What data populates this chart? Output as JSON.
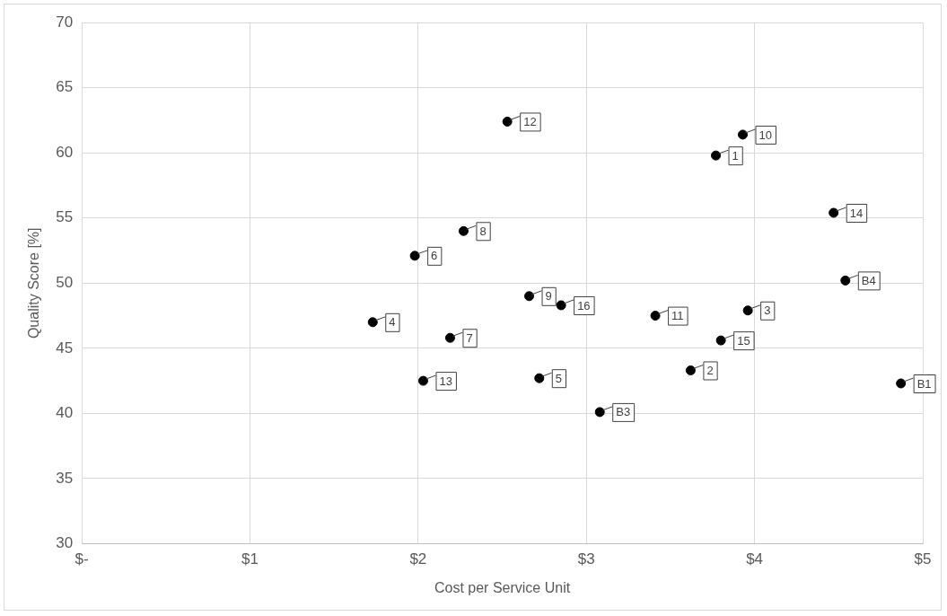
{
  "chart_data": {
    "type": "scatter",
    "xlabel": "Cost per Service Unit",
    "ylabel": "Quality Score [%]",
    "x": [
      3.77,
      3.62,
      3.96,
      1.73,
      2.72,
      1.98,
      2.19,
      2.27,
      2.66,
      3.93,
      3.41,
      2.53,
      2.03,
      4.47,
      3.8,
      2.85,
      4.87,
      3.08,
      4.54
    ],
    "values": [
      59.8,
      43.3,
      47.9,
      47.0,
      42.7,
      52.1,
      45.8,
      54.0,
      49.0,
      61.4,
      47.5,
      62.4,
      42.5,
      55.4,
      45.6,
      48.3,
      42.3,
      40.1,
      50.2
    ],
    "color": "#000000",
    "marker": "circle",
    "grid": true,
    "legend": false,
    "xlim": [
      0,
      5
    ],
    "xticks": [
      {
        "value": 0,
        "label": "$-"
      },
      {
        "value": 1,
        "label": "$1"
      },
      {
        "value": 2,
        "label": "$2"
      },
      {
        "value": 3,
        "label": "$3"
      },
      {
        "value": 4,
        "label": "$4"
      },
      {
        "value": 5,
        "label": "$5"
      }
    ],
    "ylim": [
      30,
      70
    ],
    "yticks": [
      30,
      35,
      40,
      45,
      50,
      55,
      60,
      65,
      70
    ],
    "annotations": [
      {
        "text": "1",
        "x": 3.77,
        "y": 59.8
      },
      {
        "text": "2",
        "x": 3.62,
        "y": 43.3
      },
      {
        "text": "3",
        "x": 3.96,
        "y": 47.9
      },
      {
        "text": "4",
        "x": 1.73,
        "y": 47.0
      },
      {
        "text": "5",
        "x": 2.72,
        "y": 42.7
      },
      {
        "text": "6",
        "x": 1.98,
        "y": 52.1
      },
      {
        "text": "7",
        "x": 2.19,
        "y": 45.8
      },
      {
        "text": "8",
        "x": 2.27,
        "y": 54.0
      },
      {
        "text": "9",
        "x": 2.66,
        "y": 49.0
      },
      {
        "text": "10",
        "x": 3.93,
        "y": 61.4
      },
      {
        "text": "11",
        "x": 3.41,
        "y": 47.5
      },
      {
        "text": "12",
        "x": 2.53,
        "y": 62.4
      },
      {
        "text": "13",
        "x": 2.03,
        "y": 42.5
      },
      {
        "text": "14",
        "x": 4.47,
        "y": 55.4
      },
      {
        "text": "15",
        "x": 3.8,
        "y": 45.6
      },
      {
        "text": "16",
        "x": 2.85,
        "y": 48.3
      },
      {
        "text": "B1",
        "x": 4.87,
        "y": 42.3
      },
      {
        "text": "B3",
        "x": 3.08,
        "y": 40.1
      },
      {
        "text": "B4",
        "x": 4.54,
        "y": 50.2
      }
    ]
  }
}
